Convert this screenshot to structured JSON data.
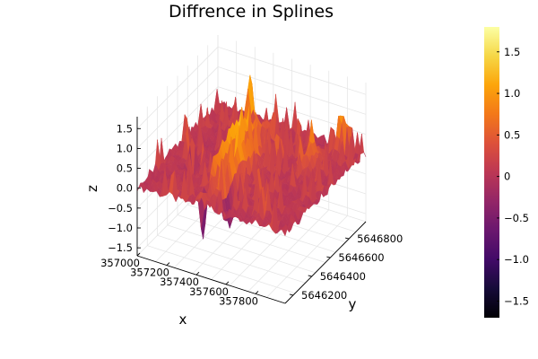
{
  "chart_data": {
    "type": "surface",
    "title": "Diffrence in Splines",
    "xlabel": "x",
    "ylabel": "y",
    "zlabel": "z",
    "x_ticks": [
      "357000",
      "357200",
      "357400",
      "357600",
      "357800"
    ],
    "y_ticks": [
      "5646200",
      "5646400",
      "5646600",
      "5646800"
    ],
    "z_ticks": [
      "−1.5",
      "−1.0",
      "−0.5",
      "0.0",
      "0.5",
      "1.0",
      "1.5"
    ],
    "z_values": [
      -1.5,
      -1.0,
      -0.5,
      0.0,
      0.5,
      1.0,
      1.5
    ],
    "zlim": [
      -1.7,
      1.8
    ],
    "colorbar": {
      "colormap": "inferno",
      "range": [
        -1.7,
        1.8
      ],
      "tick_values": [
        1.5,
        1.0,
        0.5,
        0,
        -0.5,
        -1.0,
        -1.5
      ],
      "tick_labels": [
        "1.5",
        "1.0",
        "0.5",
        "0",
        "−0.5",
        "−1.0",
        "−1.5"
      ]
    },
    "grid": true,
    "legend": "none"
  }
}
